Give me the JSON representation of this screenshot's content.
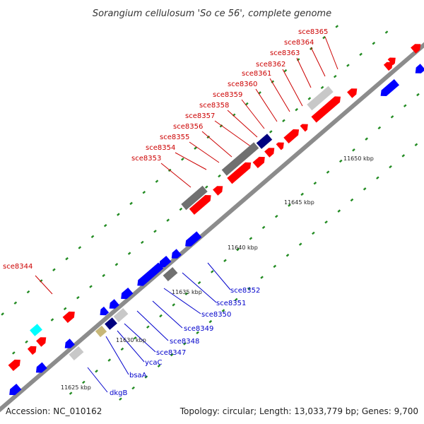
{
  "title": "Sorangium cellulosum 'So ce 56', complete genome",
  "footer": {
    "accession": "Accession: NC_010162",
    "summary": "Topology: circular; Length: 13,033,779 bp; Genes: 9,700"
  },
  "colors": {
    "backbone": "#8c8c8c",
    "forward_gene": "#ff0000",
    "reverse_gene": "#0000ff",
    "label_forward": "#cc0000",
    "label_reverse": "#0000cc",
    "gray_feature": "#707070",
    "light_feature": "#c8c8c8",
    "navy_feature": "#00007f",
    "khaki_feature": "#c8b878",
    "cyan_feature": "#00ffff",
    "tick": "#228b22"
  },
  "kbp_marks": [
    "11625 kbp",
    "11630 kbp",
    "11635 kbp",
    "11640 kbp",
    "11645 kbp",
    "11650 kbp"
  ],
  "forward_labels": [
    "sce8344",
    "sce8353",
    "sce8354",
    "sce8355",
    "sce8356",
    "sce8357",
    "sce8358",
    "sce8359",
    "sce8360",
    "sce8361",
    "sce8362",
    "sce8363",
    "sce8364",
    "sce8365"
  ],
  "reverse_labels": [
    "dkgB",
    "bsaA",
    "ycaC",
    "sce8347",
    "sce8348",
    "sce8349",
    "sce8350",
    "sce8351",
    "sce8352"
  ]
}
